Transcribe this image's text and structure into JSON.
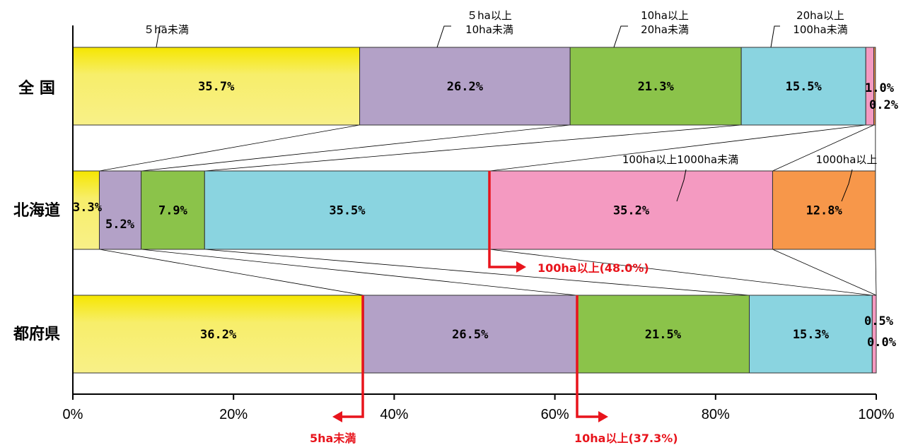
{
  "chart_data": {
    "type": "bar",
    "orientation": "horizontal",
    "stacked": "percent",
    "xlim": [
      0,
      100
    ],
    "x_ticks": [
      "0%",
      "20%",
      "40%",
      "60%",
      "80%",
      "100%"
    ],
    "categories": [
      "全 国",
      "北海道",
      "都府県"
    ],
    "series": [
      {
        "name": "５ha未満",
        "values": [
          35.7,
          3.3,
          36.2
        ],
        "labels": [
          "35.7%",
          "3.3%",
          "36.2%"
        ],
        "color": "#f5ea60"
      },
      {
        "name": "５ha以上\n10ha未満",
        "values": [
          26.2,
          5.2,
          26.5
        ],
        "labels": [
          "26.2%",
          "5.2%",
          "26.5%"
        ],
        "color": "#b3a1c7"
      },
      {
        "name": "10ha以上\n20ha未満",
        "values": [
          21.3,
          7.9,
          21.5
        ],
        "labels": [
          "21.3%",
          "7.9%",
          "21.5%"
        ],
        "color": "#8bc34a"
      },
      {
        "name": "20ha以上\n100ha未満",
        "values": [
          15.5,
          35.5,
          15.3
        ],
        "labels": [
          "15.5%",
          "35.5%",
          "15.3%"
        ],
        "color": "#8ad4e0"
      },
      {
        "name": "100ha以上1000ha未満",
        "values": [
          1.0,
          35.2,
          0.5
        ],
        "labels": [
          "1.0%",
          "35.2%",
          "0.5%"
        ],
        "color": "#f49ac1"
      },
      {
        "name": "1000ha以上",
        "values": [
          0.2,
          12.8,
          0.0
        ],
        "labels": [
          "0.2%",
          "12.8%",
          "0.0%"
        ],
        "color": "#f7974a"
      }
    ],
    "annotations": [
      {
        "text": "100ha以上(48.0%)"
      },
      {
        "text": "5ha未満"
      },
      {
        "text": "10ha以上(37.3%)"
      }
    ],
    "grid": false,
    "legend": "labels above bars with leader lines"
  }
}
